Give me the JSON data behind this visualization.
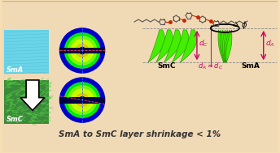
{
  "bg_color": "#f5deb3",
  "bg_color_light": "#f0d9b5",
  "title_text": "SmA to SmC layer shrinkage < 1%",
  "title_fontsize": 7.5,
  "sma_label": "SmA",
  "smc_label": "SmC",
  "phi_label": "$\\phi$",
  "label_color": "#333333",
  "arrow_color": "#cc0066",
  "green_color": "#44ee00",
  "green_dark": "#228800",
  "blue_phase": "#0000cc",
  "sma_bg": "#6ad4e8",
  "smc_bg": "#3a8a3a",
  "mol_color": "#555555",
  "red_color": "#cc2200"
}
